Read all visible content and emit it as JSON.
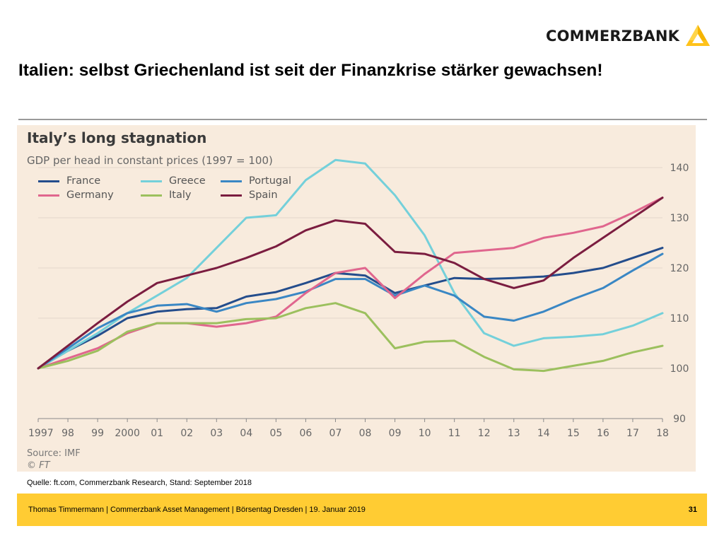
{
  "header": {
    "brand": "COMMERZBANK",
    "title": "Italien: selbst Griechenland ist seit der Finanzkrise stärker gewachsen!"
  },
  "colors": {
    "accent_yellow": "#ffcc33",
    "chart_background": "#f8ebdd"
  },
  "icons": {
    "logo": "commerzbank-ribbon-icon"
  },
  "chart_data": {
    "type": "line",
    "title": "Italy’s long stagnation",
    "subtitle": "GDP per head in constant prices (1997 = 100)",
    "x": [
      "1997",
      "98",
      "99",
      "2000",
      "01",
      "02",
      "03",
      "04",
      "05",
      "06",
      "07",
      "08",
      "09",
      "10",
      "11",
      "12",
      "13",
      "14",
      "15",
      "16",
      "17",
      "18"
    ],
    "xlabel": "",
    "ylabel": "",
    "ylim": [
      90,
      140
    ],
    "yticks": [
      90,
      100,
      110,
      120,
      130,
      140
    ],
    "grid": true,
    "y_axis_side": "right",
    "legend_placement": "top-left",
    "series": [
      {
        "name": "France",
        "color": "#244d8c",
        "values": [
          100,
          103.5,
          106.5,
          110,
          111.3,
          111.8,
          112,
          114.3,
          115.2,
          117,
          119,
          118.5,
          115,
          116.5,
          118,
          117.8,
          118,
          118.3,
          119,
          120,
          122,
          124
        ]
      },
      {
        "name": "Greece",
        "color": "#74d0da",
        "values": [
          100,
          103.5,
          107,
          111,
          114.5,
          118,
          124,
          130,
          130.5,
          137.5,
          141.5,
          140.8,
          134.5,
          126.5,
          115,
          107,
          104.5,
          106,
          106.3,
          106.8,
          108.5,
          111
        ]
      },
      {
        "name": "Portugal",
        "color": "#3a87c4",
        "values": [
          100,
          104,
          108,
          111,
          112.5,
          112.8,
          111.3,
          113,
          113.8,
          115.3,
          117.8,
          117.8,
          114.5,
          116.5,
          114.5,
          110.3,
          109.5,
          111.3,
          113.8,
          116,
          119.5,
          122.8
        ]
      },
      {
        "name": "Germany",
        "color": "#e0668e",
        "values": [
          100,
          102,
          104,
          107,
          109,
          109,
          108.3,
          109,
          110.3,
          115,
          119,
          120,
          114,
          118.8,
          123,
          123.5,
          124,
          126,
          127,
          128.3,
          131,
          134
        ]
      },
      {
        "name": "Italy",
        "color": "#9cc05e",
        "values": [
          100,
          101.5,
          103.5,
          107.3,
          109,
          109,
          109,
          109.8,
          110,
          112,
          113,
          111,
          104,
          105.3,
          105.5,
          102.3,
          99.8,
          99.5,
          100.5,
          101.5,
          103.2,
          104.5
        ]
      },
      {
        "name": "Spain",
        "color": "#7b1d40",
        "values": [
          100,
          104.5,
          109,
          113.3,
          117,
          118.5,
          120,
          122,
          124.3,
          127.5,
          129.5,
          128.8,
          123.2,
          122.8,
          121,
          117.8,
          116,
          117.5,
          122,
          126,
          130,
          134
        ]
      }
    ],
    "source": "Source: IMF",
    "copyright": "© FT"
  },
  "footnote": "Quelle: ft.com, Commerzbank Research, Stand: September 2018",
  "footer": {
    "text": "Thomas Timmermann | Commerzbank Asset Management | Börsentag Dresden | 19. Januar 2019",
    "page": "31"
  }
}
